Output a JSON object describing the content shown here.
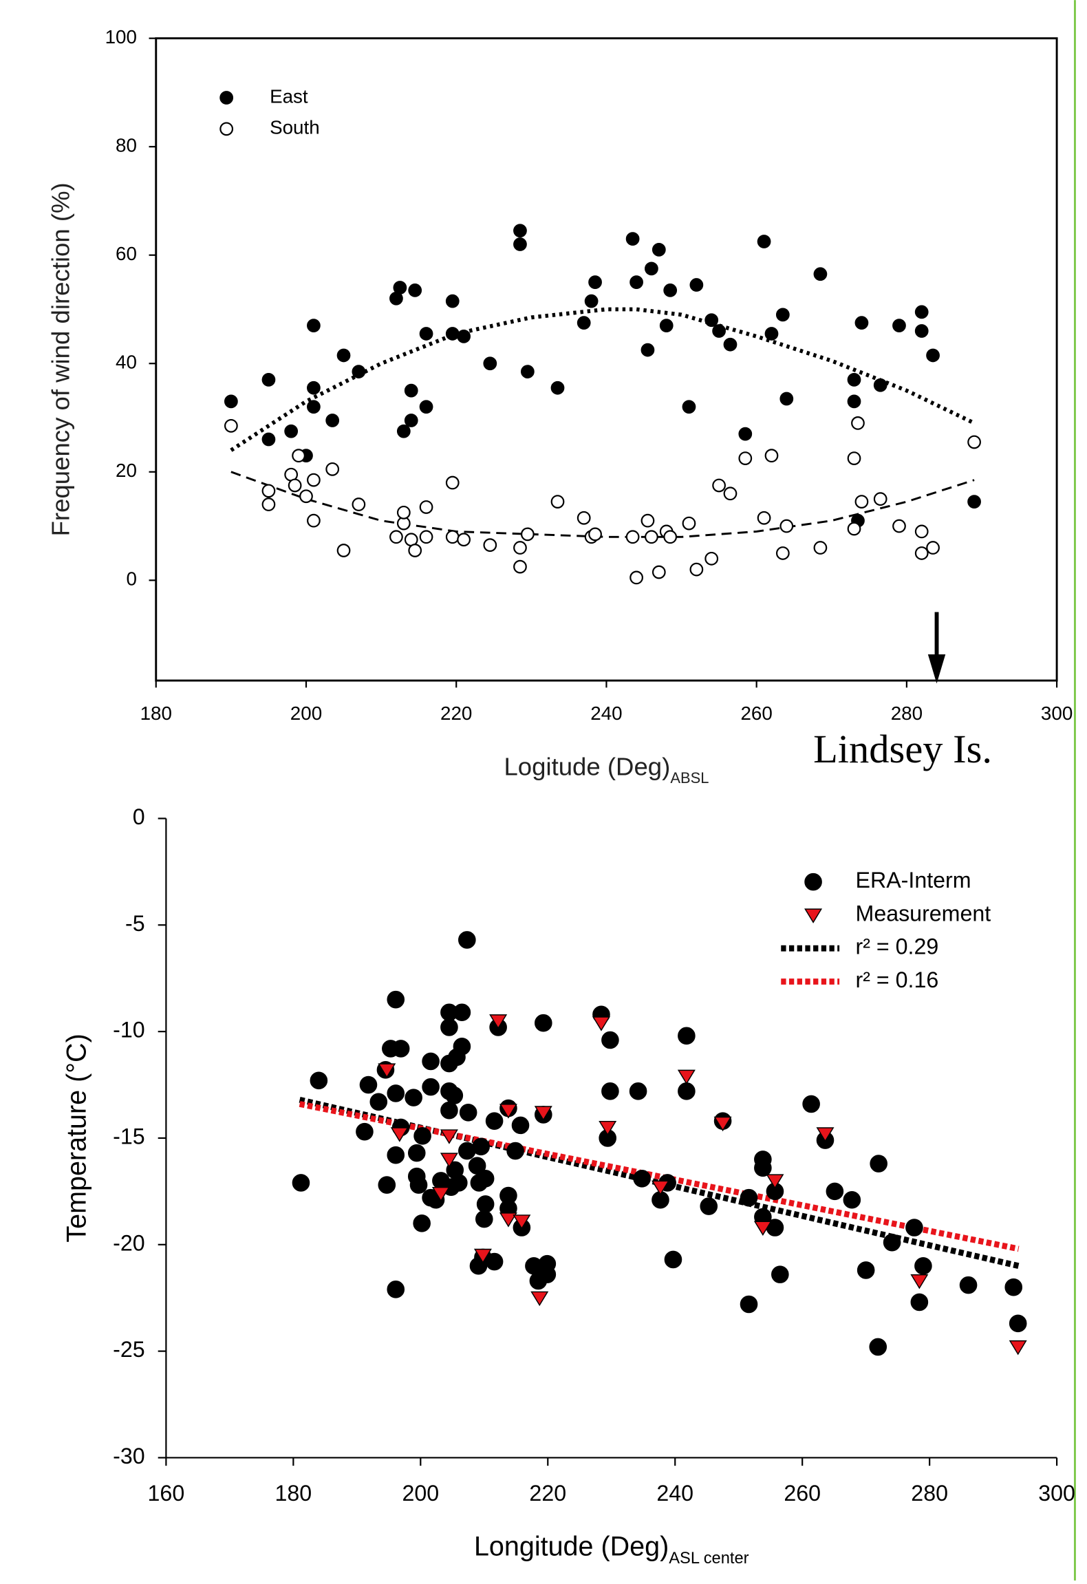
{
  "chart_data": [
    {
      "type": "scatter",
      "frame": "box",
      "ylabel": "Frequency of wind direction (%)",
      "xlabel": "Logitude (Deg)",
      "xlabel_sub": "ABSL",
      "xlim": [
        180,
        300
      ],
      "xticks": [
        180,
        200,
        220,
        240,
        260,
        280,
        300
      ],
      "ylim": [
        -18.5,
        100
      ],
      "yticks": [
        0,
        20,
        40,
        60,
        80,
        100
      ],
      "legend": "upper left",
      "annotation": "Lindsey Is.",
      "arrow_x": 284,
      "series": [
        {
          "name": "East",
          "marker": "filled-circle",
          "color": "#000000",
          "x": [
            190,
            195,
            195,
            198,
            200,
            201,
            201,
            201,
            203.5,
            205,
            207,
            212,
            212.5,
            214.5,
            214,
            214,
            213,
            216,
            216,
            219.5,
            219.5,
            221,
            224.5,
            228.5,
            228.5,
            229.5,
            233.5,
            237,
            238,
            238.5,
            243.5,
            244,
            245.5,
            246,
            247,
            248,
            248.5,
            252,
            251,
            254,
            255,
            256.5,
            258.5,
            261,
            262,
            263.5,
            264,
            268.5,
            273,
            273,
            273.5,
            274,
            276.5,
            279,
            282,
            282,
            283.5,
            289
          ],
          "values": [
            33,
            37,
            26,
            27.5,
            23,
            35.5,
            32,
            47,
            29.5,
            41.5,
            38.5,
            52,
            54,
            53.5,
            35,
            29.5,
            27.5,
            32,
            45.5,
            51.5,
            45.5,
            45,
            40,
            64.5,
            62,
            38.5,
            35.5,
            47.5,
            51.5,
            55,
            63,
            55,
            42.5,
            57.5,
            61,
            47,
            53.5,
            54.5,
            32,
            48,
            46,
            43.5,
            27,
            62.5,
            45.5,
            49,
            33.5,
            56.5,
            37,
            33,
            11,
            47.5,
            36,
            47,
            49.5,
            46,
            41.5,
            14.5
          ]
        },
        {
          "name": "South",
          "marker": "open-circle",
          "color": "#000000",
          "x": [
            190,
            195,
            195,
            198,
            198.5,
            199,
            200,
            201,
            201,
            203.5,
            205,
            207,
            212,
            213,
            213,
            214,
            214.5,
            216,
            216,
            219.5,
            219.5,
            221,
            224.5,
            228.5,
            228.5,
            229.5,
            233.5,
            237,
            238,
            238.5,
            243.5,
            244,
            245.5,
            246,
            247,
            248,
            248.5,
            251,
            252,
            254,
            255,
            256.5,
            258.5,
            261,
            262,
            263.5,
            264,
            268.5,
            273,
            273,
            273.5,
            274,
            276.5,
            279,
            282,
            282,
            283.5,
            289
          ],
          "values": [
            28.5,
            16.5,
            14,
            19.5,
            17.5,
            23,
            15.5,
            18.5,
            11,
            20.5,
            5.5,
            14,
            8,
            10.5,
            12.5,
            7.5,
            5.5,
            13.5,
            8,
            18,
            8,
            7.5,
            6.5,
            2.5,
            6,
            8.5,
            14.5,
            11.5,
            8,
            8.5,
            8,
            0.5,
            11,
            8,
            1.5,
            9,
            8,
            10.5,
            2,
            4,
            17.5,
            16,
            22.5,
            11.5,
            23,
            5,
            10,
            6,
            22.5,
            9.5,
            29,
            14.5,
            15,
            10,
            9,
            5,
            6,
            25.5
          ]
        }
      ],
      "trendlines": [
        {
          "color": "#000000",
          "style": "dotted",
          "x": [
            190,
            200,
            210,
            220,
            230,
            240,
            244,
            250,
            260,
            270,
            280,
            289
          ],
          "values": [
            24,
            33,
            40,
            45.5,
            48.5,
            50,
            50,
            49,
            45,
            40.5,
            35,
            29
          ]
        },
        {
          "color": "#000000",
          "style": "dashed",
          "x": [
            190,
            200,
            210,
            220,
            230,
            240,
            250,
            260,
            270,
            280,
            289
          ],
          "values": [
            20,
            15,
            11,
            9,
            8.5,
            8,
            8,
            9,
            11,
            14.5,
            18.5
          ]
        }
      ]
    },
    {
      "type": "scatter",
      "frame": "axes",
      "ylabel": "Temperature (°C)",
      "xlabel": "Longitude (Deg)",
      "xlabel_sub": "ASL center",
      "xlim": [
        160,
        300
      ],
      "xticks": [
        160,
        180,
        200,
        220,
        240,
        260,
        280,
        300
      ],
      "ylim": [
        -30,
        0
      ],
      "yticks": [
        -30,
        -25,
        -20,
        -15,
        -10,
        -5,
        0
      ],
      "legend": "upper right",
      "series": [
        {
          "name": "ERA-Interm",
          "marker": "filled-circle",
          "color": "#000000",
          "x": [
            181.2,
            184,
            191.2,
            191.8,
            193.4,
            194.5,
            194.7,
            195.3,
            196.1,
            196.1,
            196.1,
            196.1,
            196.9,
            196.9,
            198.9,
            199.4,
            199.4,
            199.7,
            200.2,
            200.3,
            201.6,
            201.6,
            201.6,
            202.4,
            203.2,
            204.5,
            204.5,
            204.5,
            204.5,
            204.5,
            204.8,
            205.3,
            205.4,
            205.7,
            206,
            206.5,
            206.5,
            207.3,
            207.3,
            207.5,
            208.9,
            209.1,
            209.2,
            209.5,
            209.8,
            210,
            210.2,
            210.2,
            211.6,
            211.6,
            212.2,
            213.8,
            213.8,
            213.8,
            214.9,
            215.7,
            215.9,
            217.8,
            218.5,
            219.3,
            219.3,
            219.9,
            219.9,
            228.4,
            229.4,
            229.8,
            229.8,
            234.2,
            234.8,
            237.7,
            238.8,
            239.7,
            241.8,
            241.8,
            245.3,
            247.5,
            251.6,
            251.6,
            253.8,
            253.8,
            253.8,
            255.7,
            255.7,
            256.5,
            261.4,
            263.6,
            265.1,
            267.8,
            270,
            271.9,
            272,
            274.1,
            277.6,
            278.4,
            279,
            286.1,
            293.2,
            293.9
          ],
          "values": [
            -17.1,
            -12.3,
            -14.7,
            -12.5,
            -13.3,
            -11.8,
            -17.2,
            -10.8,
            -8.5,
            -12.9,
            -15.8,
            -22.1,
            -10.8,
            -14.5,
            -13.1,
            -15.7,
            -16.8,
            -17.2,
            -19,
            -14.9,
            -11.4,
            -12.6,
            -17.8,
            -17.9,
            -17,
            -9.1,
            -9.8,
            -11.5,
            -12.8,
            -13.7,
            -17.3,
            -13,
            -16.5,
            -11.2,
            -17.1,
            -10.7,
            -9.1,
            -5.7,
            -15.6,
            -13.8,
            -16.3,
            -21,
            -17.1,
            -15.4,
            -20.6,
            -18.8,
            -18.1,
            -16.9,
            -20.8,
            -14.2,
            -9.8,
            -13.6,
            -17.7,
            -18.3,
            -15.6,
            -14.4,
            -19.2,
            -21,
            -21.7,
            -9.6,
            -13.9,
            -20.9,
            -21.4,
            -9.2,
            -15,
            -10.4,
            -12.8,
            -12.8,
            -16.9,
            -17.9,
            -17.1,
            -20.7,
            -10.2,
            -12.8,
            -18.2,
            -14.2,
            -22.8,
            -17.8,
            -16,
            -16.4,
            -18.7,
            -17.5,
            -19.2,
            -21.4,
            -13.4,
            -15.1,
            -17.5,
            -17.9,
            -21.2,
            -24.8,
            -16.2,
            -19.9,
            -19.2,
            -22.7,
            -21,
            -21.9,
            -22,
            -23.7
          ]
        },
        {
          "name": "Measurement",
          "marker": "triangle-down",
          "color": "#e8141b",
          "x": [
            194.7,
            196.7,
            204.5,
            204.5,
            203.2,
            209.8,
            212.2,
            213.8,
            213.8,
            215.9,
            218.7,
            219.3,
            228.4,
            229.4,
            237.7,
            241.8,
            247.5,
            253.8,
            255.7,
            263.6,
            278.4,
            293.9
          ],
          "values": [
            -11.8,
            -14.8,
            -14.9,
            -16,
            -17.6,
            -20.5,
            -9.5,
            -13.7,
            -18.8,
            -18.9,
            -22.5,
            -13.8,
            -9.6,
            -14.5,
            -17.3,
            -12.1,
            -14.3,
            -19.2,
            -17,
            -14.8,
            -21.7,
            -24.8
          ]
        }
      ],
      "trendlines": [
        {
          "name": "r² = 0.29",
          "color": "#000000",
          "style": "thick-dotted",
          "x": [
            181,
            294
          ],
          "values": [
            -13.2,
            -21
          ]
        },
        {
          "name": "r² = 0.16",
          "color": "#e8141b",
          "style": "thick-dotted",
          "x": [
            181,
            294
          ],
          "values": [
            -13.4,
            -20.2
          ]
        }
      ]
    }
  ]
}
